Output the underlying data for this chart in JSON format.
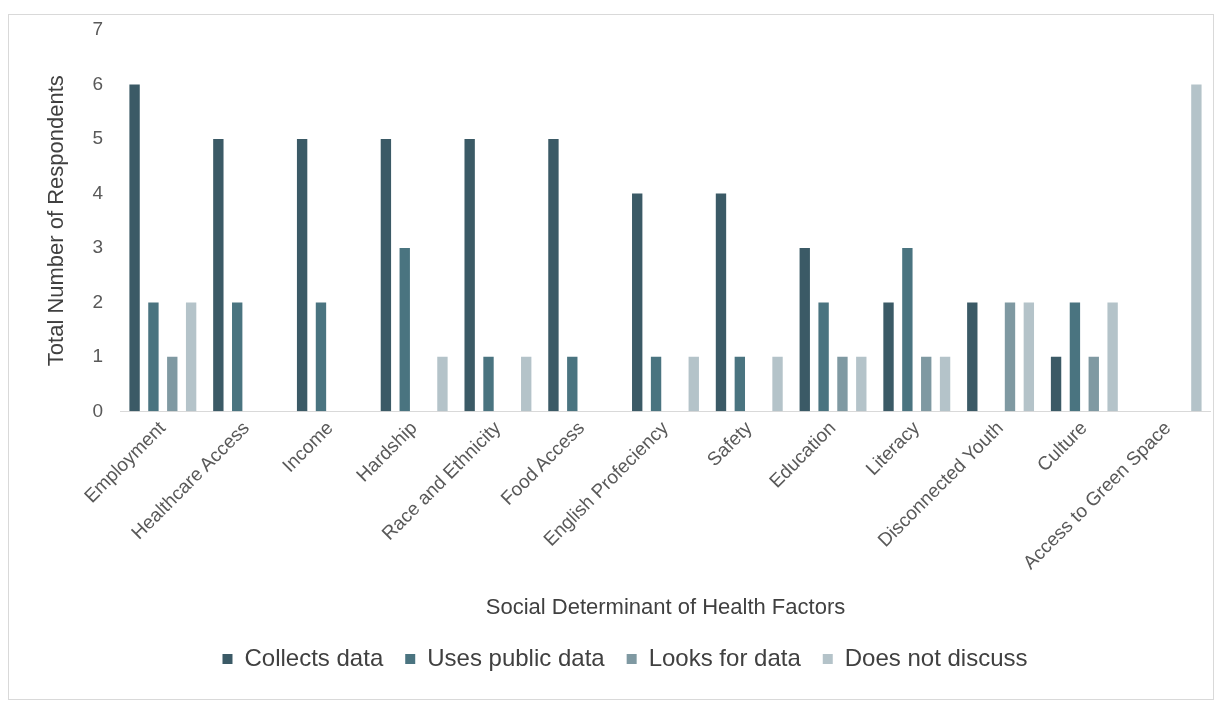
{
  "chart_data": {
    "type": "bar",
    "xlabel": "Social Determinant of Health Factors",
    "ylabel": "Total Number of Respondents",
    "categories": [
      "Employment",
      "Healthcare Access",
      "Income",
      "Hardship",
      "Race and Ethnicity",
      "Food Access",
      "English Profeciency",
      "Safety",
      "Education",
      "Literacy",
      "Disconnected Youth",
      "Culture",
      "Access to Green Space"
    ],
    "series": [
      {
        "name": "Collects data",
        "color": "#3b5a66",
        "values": [
          6,
          5,
          5,
          5,
          5,
          5,
          4,
          4,
          3,
          2,
          2,
          1,
          0
        ]
      },
      {
        "name": "Uses public data",
        "color": "#4a7480",
        "values": [
          2,
          2,
          2,
          3,
          1,
          1,
          1,
          1,
          2,
          3,
          0,
          2,
          0
        ]
      },
      {
        "name": "Looks for data",
        "color": "#7f99a2",
        "values": [
          1,
          0,
          0,
          0,
          0,
          0,
          0,
          0,
          1,
          1,
          2,
          1,
          0
        ]
      },
      {
        "name": "Does not discuss",
        "color": "#b4c3c9",
        "values": [
          2,
          0,
          0,
          1,
          1,
          0,
          1,
          1,
          1,
          1,
          2,
          2,
          6
        ]
      }
    ],
    "ylim": [
      0,
      7
    ],
    "yticks": [
      0,
      1,
      2,
      3,
      4,
      5,
      6,
      7
    ],
    "grid": false,
    "legend": "bottom"
  }
}
